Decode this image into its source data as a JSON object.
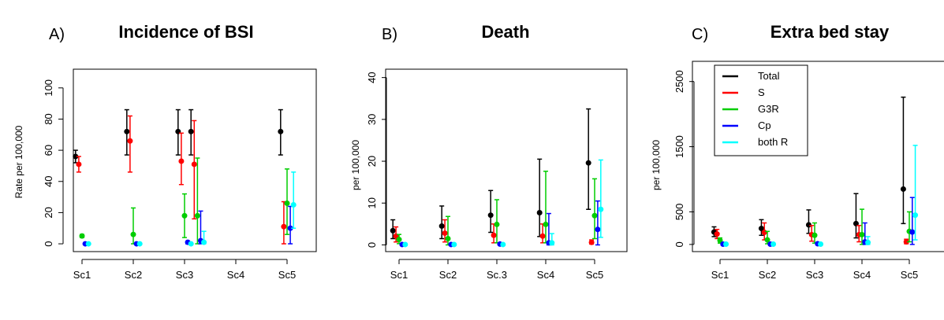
{
  "colors": {
    "Total": "#000000",
    "S": "#ff0000",
    "G3R": "#00cd00",
    "Cp": "#0000ff",
    "both R": "#00ffff"
  },
  "chart_data": [
    {
      "type": "scatter",
      "panel_label": "A)",
      "title": "Incidence of BSI",
      "ylabel": "Rate per 100,000",
      "xlabel": "",
      "categories": [
        "Sc1",
        "Sc2",
        "Sc3",
        "Sc4",
        "Sc5"
      ],
      "ylim": [
        -5,
        112
      ],
      "yticks": [
        0,
        20,
        40,
        60,
        80,
        100
      ],
      "grid": false,
      "series": [
        {
          "name": "Total",
          "points": [
            {
              "cat": 0,
              "offset": -0.3,
              "y": 56,
              "lo": 52,
              "hi": 60
            },
            {
              "cat": 1,
              "offset": -0.3,
              "y": 72,
              "lo": 57,
              "hi": 86
            },
            {
              "cat": 2,
              "offset": -0.3,
              "y": 72,
              "lo": 57,
              "hi": 86
            },
            {
              "cat": 2,
              "offset": 0.3,
              "y": 72,
              "lo": 57,
              "hi": 86
            },
            {
              "cat": 4,
              "offset": -0.3,
              "y": 72,
              "lo": 57,
              "hi": 86
            }
          ]
        },
        {
          "name": "S",
          "points": [
            {
              "cat": 0,
              "offset": -0.15,
              "y": 51,
              "lo": 46,
              "hi": 56
            },
            {
              "cat": 1,
              "offset": -0.15,
              "y": 66,
              "lo": 46,
              "hi": 82
            },
            {
              "cat": 2,
              "offset": -0.15,
              "y": 53,
              "lo": 38,
              "hi": 71
            },
            {
              "cat": 2,
              "offset": 0.45,
              "y": 51,
              "lo": 16,
              "hi": 79
            },
            {
              "cat": 4,
              "offset": -0.15,
              "y": 11,
              "lo": 0,
              "hi": 27
            }
          ]
        },
        {
          "name": "G3R",
          "points": [
            {
              "cat": 0,
              "offset": 0.0,
              "y": 5,
              "lo": 4,
              "hi": 6
            },
            {
              "cat": 1,
              "offset": 0.0,
              "y": 6,
              "lo": 0,
              "hi": 23
            },
            {
              "cat": 2,
              "offset": 0.0,
              "y": 18,
              "lo": 4,
              "hi": 32
            },
            {
              "cat": 2,
              "offset": 0.6,
              "y": 18,
              "lo": 0,
              "hi": 55
            },
            {
              "cat": 4,
              "offset": 0.0,
              "y": 26,
              "lo": 6,
              "hi": 48
            }
          ]
        },
        {
          "name": "Cp",
          "points": [
            {
              "cat": 0,
              "offset": 0.15,
              "y": 0,
              "lo": 0,
              "hi": 0
            },
            {
              "cat": 1,
              "offset": 0.15,
              "y": 0,
              "lo": 0,
              "hi": 0
            },
            {
              "cat": 2,
              "offset": 0.15,
              "y": 1,
              "lo": 0,
              "hi": 1
            },
            {
              "cat": 2,
              "offset": 0.75,
              "y": 2,
              "lo": 0,
              "hi": 21
            },
            {
              "cat": 4,
              "offset": 0.15,
              "y": 10,
              "lo": 0,
              "hi": 24
            }
          ]
        },
        {
          "name": "both R",
          "points": [
            {
              "cat": 0,
              "offset": 0.3,
              "y": 0,
              "lo": 0,
              "hi": 0
            },
            {
              "cat": 1,
              "offset": 0.3,
              "y": 0,
              "lo": 0,
              "hi": 0
            },
            {
              "cat": 2,
              "offset": 0.3,
              "y": 0,
              "lo": 0,
              "hi": 0
            },
            {
              "cat": 2,
              "offset": 0.9,
              "y": 1,
              "lo": 0,
              "hi": 8
            },
            {
              "cat": 4,
              "offset": 0.3,
              "y": 25,
              "lo": 10,
              "hi": 46
            }
          ]
        }
      ]
    },
    {
      "type": "scatter",
      "panel_label": "B)",
      "title": "Death",
      "ylabel": "per 100,000",
      "xlabel": "",
      "categories": [
        "Sc1",
        "Sc2",
        "Sc.3",
        "Sc4",
        "Sc5"
      ],
      "ylim": [
        -1.6,
        42
      ],
      "yticks": [
        0,
        10,
        20,
        30,
        40
      ],
      "grid": false,
      "series": [
        {
          "name": "Total",
          "points": [
            {
              "cat": 0,
              "offset": -0.3,
              "y": 3.4,
              "lo": 1.5,
              "hi": 6
            },
            {
              "cat": 1,
              "offset": -0.3,
              "y": 4.5,
              "lo": 1.5,
              "hi": 9.3
            },
            {
              "cat": 2,
              "offset": -0.3,
              "y": 7.1,
              "lo": 3,
              "hi": 13
            },
            {
              "cat": 3,
              "offset": -0.3,
              "y": 7.7,
              "lo": 2,
              "hi": 20.5
            },
            {
              "cat": 4,
              "offset": -0.3,
              "y": 19.6,
              "lo": 8.5,
              "hi": 32.5
            }
          ]
        },
        {
          "name": "S",
          "points": [
            {
              "cat": 0,
              "offset": -0.15,
              "y": 2.1,
              "lo": 0.7,
              "hi": 4.3
            },
            {
              "cat": 1,
              "offset": -0.15,
              "y": 2.8,
              "lo": 0.7,
              "hi": 6
            },
            {
              "cat": 2,
              "offset": -0.15,
              "y": 2.3,
              "lo": 0.5,
              "hi": 5
            },
            {
              "cat": 3,
              "offset": -0.15,
              "y": 2.1,
              "lo": 0.5,
              "hi": 5
            },
            {
              "cat": 4,
              "offset": -0.15,
              "y": 0.6,
              "lo": 0.2,
              "hi": 1.2
            }
          ]
        },
        {
          "name": "G3R",
          "points": [
            {
              "cat": 0,
              "offset": 0.0,
              "y": 1.3,
              "lo": 0.3,
              "hi": 2.5
            },
            {
              "cat": 1,
              "offset": 0.0,
              "y": 1.5,
              "lo": 0,
              "hi": 6.8
            },
            {
              "cat": 2,
              "offset": 0.0,
              "y": 4.9,
              "lo": 0.5,
              "hi": 10.8
            },
            {
              "cat": 3,
              "offset": 0.0,
              "y": 4.9,
              "lo": 0.5,
              "hi": 17.6
            },
            {
              "cat": 4,
              "offset": 0.0,
              "y": 7.0,
              "lo": 1.5,
              "hi": 15.8
            }
          ]
        },
        {
          "name": "Cp",
          "points": [
            {
              "cat": 0,
              "offset": 0.15,
              "y": 0.1,
              "lo": 0,
              "hi": 0.1
            },
            {
              "cat": 1,
              "offset": 0.15,
              "y": 0.1,
              "lo": 0,
              "hi": 0.1
            },
            {
              "cat": 2,
              "offset": 0.15,
              "y": 0.2,
              "lo": 0,
              "hi": 0.5
            },
            {
              "cat": 3,
              "offset": 0.15,
              "y": 0.5,
              "lo": 0,
              "hi": 7.5
            },
            {
              "cat": 4,
              "offset": 0.15,
              "y": 3.7,
              "lo": 0,
              "hi": 10.5
            }
          ]
        },
        {
          "name": "both R",
          "points": [
            {
              "cat": 0,
              "offset": 0.3,
              "y": 0.1,
              "lo": 0,
              "hi": 0.1
            },
            {
              "cat": 1,
              "offset": 0.3,
              "y": 0.1,
              "lo": 0,
              "hi": 0.1
            },
            {
              "cat": 2,
              "offset": 0.3,
              "y": 0.1,
              "lo": 0,
              "hi": 0.1
            },
            {
              "cat": 3,
              "offset": 0.3,
              "y": 0.5,
              "lo": 0,
              "hi": 2.7
            },
            {
              "cat": 4,
              "offset": 0.3,
              "y": 8.5,
              "lo": 1.8,
              "hi": 20.3
            }
          ]
        }
      ]
    },
    {
      "type": "scatter",
      "panel_label": "C)",
      "title": "Extra bed stay",
      "ylabel": "per 100,000",
      "xlabel": "",
      "categories": [
        "Sc1",
        "Sc2",
        "Sc3",
        "Sc4",
        "Sc5"
      ],
      "ylim": [
        -110,
        2810
      ],
      "yticks": [
        0,
        500,
        1500,
        2500
      ],
      "grid": false,
      "legend": {
        "position": "top-left",
        "entries": [
          "Total",
          "S",
          "G3R",
          "Cp",
          "both R"
        ]
      },
      "series": [
        {
          "name": "Total",
          "points": [
            {
              "cat": 0,
              "offset": -0.3,
              "y": 190,
              "lo": 120,
              "hi": 270
            },
            {
              "cat": 1,
              "offset": -0.3,
              "y": 245,
              "lo": 140,
              "hi": 380
            },
            {
              "cat": 2,
              "offset": -0.3,
              "y": 300,
              "lo": 170,
              "hi": 530
            },
            {
              "cat": 3,
              "offset": -0.3,
              "y": 320,
              "lo": 100,
              "hi": 780
            },
            {
              "cat": 4,
              "offset": -0.3,
              "y": 850,
              "lo": 320,
              "hi": 2260
            }
          ]
        },
        {
          "name": "S",
          "points": [
            {
              "cat": 0,
              "offset": -0.15,
              "y": 160,
              "lo": 90,
              "hi": 230
            },
            {
              "cat": 1,
              "offset": -0.15,
              "y": 185,
              "lo": 70,
              "hi": 330
            },
            {
              "cat": 2,
              "offset": -0.15,
              "y": 150,
              "lo": 50,
              "hi": 290
            },
            {
              "cat": 3,
              "offset": -0.15,
              "y": 150,
              "lo": 40,
              "hi": 290
            },
            {
              "cat": 4,
              "offset": -0.15,
              "y": 40,
              "lo": 10,
              "hi": 80
            }
          ]
        },
        {
          "name": "G3R",
          "points": [
            {
              "cat": 0,
              "offset": 0.0,
              "y": 60,
              "lo": 20,
              "hi": 100
            },
            {
              "cat": 1,
              "offset": 0.0,
              "y": 70,
              "lo": 10,
              "hi": 200
            },
            {
              "cat": 2,
              "offset": 0.0,
              "y": 140,
              "lo": 20,
              "hi": 330
            },
            {
              "cat": 3,
              "offset": 0.0,
              "y": 150,
              "lo": 0,
              "hi": 540
            },
            {
              "cat": 4,
              "offset": 0.0,
              "y": 200,
              "lo": 40,
              "hi": 500
            }
          ]
        },
        {
          "name": "Cp",
          "points": [
            {
              "cat": 0,
              "offset": 0.15,
              "y": 5,
              "lo": 0,
              "hi": 10
            },
            {
              "cat": 1,
              "offset": 0.15,
              "y": 5,
              "lo": 0,
              "hi": 10
            },
            {
              "cat": 2,
              "offset": 0.15,
              "y": 10,
              "lo": 0,
              "hi": 30
            },
            {
              "cat": 3,
              "offset": 0.15,
              "y": 40,
              "lo": 0,
              "hi": 330
            },
            {
              "cat": 4,
              "offset": 0.15,
              "y": 190,
              "lo": 0,
              "hi": 720
            }
          ]
        },
        {
          "name": "both R",
          "points": [
            {
              "cat": 0,
              "offset": 0.3,
              "y": 5,
              "lo": 0,
              "hi": 10
            },
            {
              "cat": 1,
              "offset": 0.3,
              "y": 5,
              "lo": 0,
              "hi": 10
            },
            {
              "cat": 2,
              "offset": 0.3,
              "y": 5,
              "lo": 0,
              "hi": 10
            },
            {
              "cat": 3,
              "offset": 0.3,
              "y": 30,
              "lo": 0,
              "hi": 120
            },
            {
              "cat": 4,
              "offset": 0.3,
              "y": 450,
              "lo": 70,
              "hi": 1520
            }
          ]
        }
      ]
    }
  ]
}
